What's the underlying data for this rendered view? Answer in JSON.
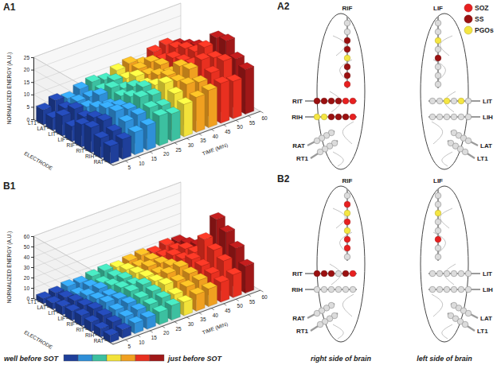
{
  "chart_data": [
    {
      "type": "bar3d",
      "title": "A1",
      "xlabel": "TIME (MIN)",
      "ylabel": "NORMALIZED ENERGY (A.U.)",
      "zlabel": "ELECTRODE",
      "x": [
        0,
        5,
        10,
        15,
        20,
        25,
        30,
        35,
        40,
        45,
        50,
        55
      ],
      "xlim": [
        0,
        60
      ],
      "xticks": [
        5,
        10,
        15,
        20,
        25,
        30,
        35,
        40,
        45,
        50,
        55,
        60
      ],
      "ylim": [
        0,
        25
      ],
      "yticks": [
        0,
        5,
        10,
        15,
        20,
        25
      ],
      "grid": true,
      "series": [
        {
          "name": "LT1",
          "values": [
            6,
            8,
            7,
            9,
            10,
            9,
            11,
            12,
            10,
            13,
            14,
            12
          ]
        },
        {
          "name": "LAT",
          "values": [
            5,
            7,
            8,
            8,
            9,
            11,
            10,
            12,
            13,
            12,
            15,
            14
          ]
        },
        {
          "name": "LIT",
          "values": [
            8,
            9,
            8,
            11,
            12,
            10,
            13,
            12,
            14,
            15,
            17,
            16
          ]
        },
        {
          "name": "LIF",
          "values": [
            6,
            8,
            10,
            9,
            11,
            13,
            12,
            14,
            13,
            16,
            18,
            17
          ]
        },
        {
          "name": "RIF",
          "values": [
            9,
            10,
            12,
            11,
            13,
            15,
            14,
            16,
            18,
            17,
            22,
            24
          ]
        },
        {
          "name": "RIT",
          "values": [
            10,
            11,
            13,
            12,
            15,
            14,
            17,
            16,
            19,
            21,
            20,
            25
          ]
        },
        {
          "name": "RIH",
          "values": [
            8,
            9,
            11,
            12,
            13,
            12,
            15,
            17,
            16,
            18,
            21,
            20
          ]
        },
        {
          "name": "RAT",
          "values": [
            7,
            8,
            9,
            10,
            12,
            11,
            13,
            14,
            15,
            16,
            15,
            18
          ]
        }
      ]
    },
    {
      "type": "bar3d",
      "title": "B1",
      "xlabel": "TIME (MIN)",
      "ylabel": "NORMALIZED ENERGY (A.U.)",
      "zlabel": "ELECTRODE",
      "x": [
        0,
        5,
        10,
        15,
        20,
        25,
        30,
        35,
        40,
        45,
        50,
        55
      ],
      "xlim": [
        0,
        60
      ],
      "xticks": [
        5,
        10,
        15,
        20,
        25,
        30,
        35,
        40,
        45,
        50,
        55,
        60
      ],
      "ylim": [
        0,
        60
      ],
      "yticks": [
        0,
        10,
        20,
        30,
        40,
        50,
        60
      ],
      "grid": true,
      "series": [
        {
          "name": "LT1",
          "values": [
            5,
            6,
            8,
            7,
            9,
            10,
            9,
            11,
            12,
            10,
            13,
            12
          ]
        },
        {
          "name": "LAT",
          "values": [
            6,
            7,
            6,
            9,
            8,
            10,
            12,
            11,
            13,
            12,
            14,
            15
          ]
        },
        {
          "name": "LIT",
          "values": [
            8,
            9,
            10,
            12,
            11,
            13,
            14,
            16,
            15,
            18,
            20,
            19
          ]
        },
        {
          "name": "LIF",
          "values": [
            9,
            10,
            12,
            11,
            14,
            13,
            16,
            15,
            18,
            20,
            22,
            24
          ]
        },
        {
          "name": "RIF",
          "values": [
            10,
            12,
            14,
            13,
            16,
            18,
            17,
            20,
            22,
            25,
            40,
            55
          ]
        },
        {
          "name": "RIT",
          "values": [
            9,
            11,
            12,
            14,
            15,
            17,
            19,
            18,
            21,
            24,
            35,
            48
          ]
        },
        {
          "name": "RIH",
          "values": [
            8,
            10,
            11,
            13,
            14,
            16,
            15,
            18,
            20,
            22,
            30,
            38
          ]
        },
        {
          "name": "RAT",
          "values": [
            7,
            8,
            10,
            11,
            12,
            14,
            13,
            16,
            17,
            19,
            22,
            26
          ]
        }
      ]
    }
  ],
  "colorbar": {
    "colors": [
      "#1f3f9a",
      "#2f8fd8",
      "#3cc0a0",
      "#f2e23a",
      "#f0a020",
      "#e83020",
      "#a01818"
    ],
    "labels": [
      "well before SOT",
      "just before SOT"
    ]
  },
  "brain_legend": [
    {
      "label": "SOZ",
      "color": "#e82020"
    },
    {
      "label": "SS",
      "color": "#9b1010"
    },
    {
      "label": "PGOs",
      "color": "#f5e642"
    }
  ],
  "brain_sides": [
    "right side of brain",
    "left side of brain"
  ],
  "brain_maps": [
    {
      "title": "A2",
      "strips": [
        {
          "label": "RIF",
          "contacts": [
            null,
            null,
            "SS",
            "SS",
            "PGOs",
            "SS",
            "SS",
            "SOZ"
          ]
        },
        {
          "label": "RIT",
          "contacts": [
            "SS",
            "SS",
            "SS",
            "SS",
            "SOZ",
            "SOZ"
          ]
        },
        {
          "label": "RIH",
          "contacts": [
            "PGOs",
            "PGOs",
            "SS",
            "SS",
            "SS",
            "SOZ"
          ]
        },
        {
          "label": "RAT",
          "contacts": [
            null,
            null,
            null,
            null
          ]
        },
        {
          "label": "RT1",
          "contacts": [
            null,
            null,
            null,
            null
          ]
        },
        {
          "label": "LIF",
          "contacts": [
            null,
            null,
            "PGOs",
            null,
            "SS",
            null,
            null,
            null
          ]
        },
        {
          "label": "LIT",
          "contacts": [
            null,
            "PGOs",
            null,
            "PGOs",
            null,
            null
          ]
        },
        {
          "label": "LIH",
          "contacts": [
            null,
            null,
            null,
            null,
            null,
            null
          ]
        },
        {
          "label": "LAT",
          "contacts": [
            null,
            null,
            null,
            null
          ]
        },
        {
          "label": "LT1",
          "contacts": [
            null,
            null,
            null,
            null
          ]
        }
      ]
    },
    {
      "title": "B2",
      "strips": [
        {
          "label": "RIF",
          "contacts": [
            null,
            "SOZ",
            "PGOs",
            "SOZ",
            "PGOs",
            "SOZ",
            "SOZ",
            null
          ]
        },
        {
          "label": "RIT",
          "contacts": [
            "SS",
            "SS",
            "SS",
            null,
            "SS",
            "SOZ"
          ]
        },
        {
          "label": "RIH",
          "contacts": [
            null,
            null,
            null,
            null,
            null,
            null
          ]
        },
        {
          "label": "RAT",
          "contacts": [
            null,
            null,
            null,
            null
          ]
        },
        {
          "label": "RT1",
          "contacts": [
            null,
            null,
            null,
            null
          ]
        },
        {
          "label": "LIF",
          "contacts": [
            null,
            null,
            "PGOs",
            null,
            null,
            "SOZ",
            null,
            null
          ]
        },
        {
          "label": "LIT",
          "contacts": [
            null,
            null,
            null,
            null,
            null,
            null
          ]
        },
        {
          "label": "LIH",
          "contacts": [
            null,
            null,
            null,
            null,
            null,
            null
          ]
        },
        {
          "label": "LAT",
          "contacts": [
            null,
            null,
            null,
            null
          ]
        },
        {
          "label": "LT1",
          "contacts": [
            null,
            null,
            null,
            null
          ]
        }
      ]
    }
  ]
}
